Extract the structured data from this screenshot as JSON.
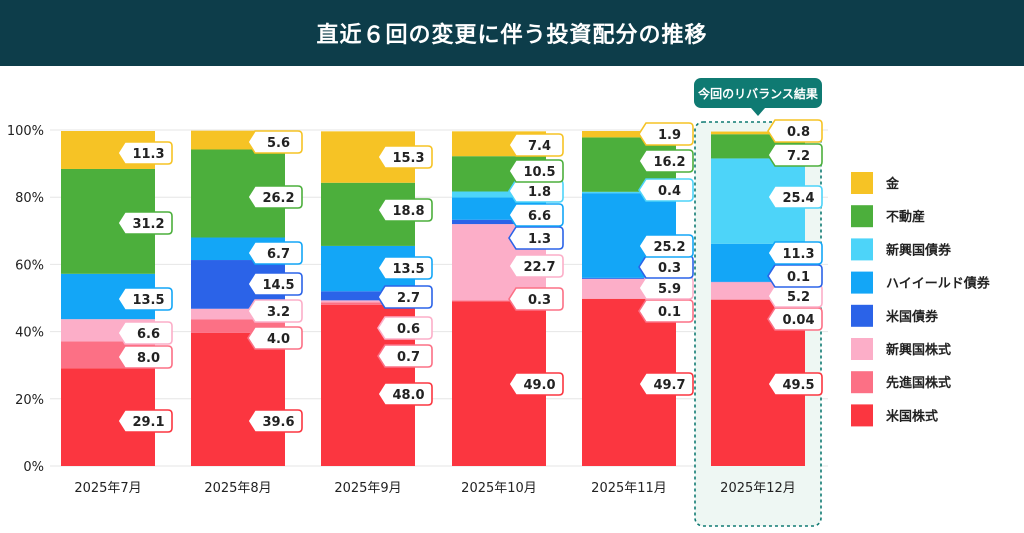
{
  "header": {
    "title": "直近６回の変更に伴う投資配分の推移"
  },
  "highlight": {
    "label": "今回のリバランス結果",
    "color": "#0f7a72"
  },
  "chart_data": {
    "type": "bar",
    "stacked": true,
    "ylim": [
      0,
      100
    ],
    "yticks": [
      "0%",
      "20%",
      "40%",
      "60%",
      "80%",
      "100%"
    ],
    "categories": [
      "2025年7月",
      "2025年8月",
      "2025年9月",
      "2025年10月",
      "2025年11月",
      "2025年12月"
    ],
    "highlight_index": 5,
    "series": [
      {
        "name": "米国株式",
        "color": "#fb3640",
        "values": [
          29.1,
          39.6,
          48.0,
          49.0,
          49.7,
          49.5
        ]
      },
      {
        "name": "先進国株式",
        "color": "#fc7085",
        "values": [
          8.0,
          4.0,
          0.7,
          0.3,
          0.1,
          0.04
        ]
      },
      {
        "name": "新興国株式",
        "color": "#fcaec8",
        "values": [
          6.6,
          3.2,
          0.6,
          22.7,
          5.9,
          5.2
        ]
      },
      {
        "name": "米国債券",
        "color": "#2b63e8",
        "values": [
          0,
          14.5,
          2.7,
          1.3,
          0.3,
          0.1
        ]
      },
      {
        "name": "ハイイールド債券",
        "color": "#13a6f7",
        "values": [
          13.5,
          6.7,
          13.5,
          6.6,
          25.2,
          11.3
        ]
      },
      {
        "name": "新興国債券",
        "color": "#4dd4f9",
        "values": [
          0,
          0,
          0,
          1.8,
          0.4,
          25.4
        ]
      },
      {
        "name": "不動産",
        "color": "#4caf3c",
        "values": [
          31.2,
          26.2,
          18.8,
          10.5,
          16.2,
          7.2
        ]
      },
      {
        "name": "金",
        "color": "#f6c325",
        "values": [
          11.3,
          5.6,
          15.3,
          7.4,
          1.9,
          0.8
        ]
      }
    ],
    "data_labels": [
      [
        "29.1",
        "8.0",
        "6.6",
        "",
        "13.5",
        "",
        "31.2",
        "11.3"
      ],
      [
        "39.6",
        "4.0",
        "3.2",
        "14.5",
        "6.7",
        "",
        "26.2",
        "5.6"
      ],
      [
        "48.0",
        "0.7",
        "0.6",
        "2.7",
        "13.5",
        "",
        "18.8",
        "15.3"
      ],
      [
        "49.0",
        "0.3",
        "22.7",
        "1.3",
        "6.6",
        "1.8",
        "10.5",
        "7.4"
      ],
      [
        "49.7",
        "0.1",
        "5.9",
        "0.3",
        "25.2",
        "0.4",
        "16.2",
        "1.9"
      ],
      [
        "49.5",
        "0.04",
        "5.2",
        "0.1",
        "11.3",
        "25.4",
        "7.2",
        "0.8"
      ]
    ],
    "legend": {
      "placement": "right",
      "items": [
        "金",
        "不動産",
        "新興国債券",
        "ハイイールド債券",
        "米国債券",
        "新興国株式",
        "先進国株式",
        "米国株式"
      ]
    }
  }
}
